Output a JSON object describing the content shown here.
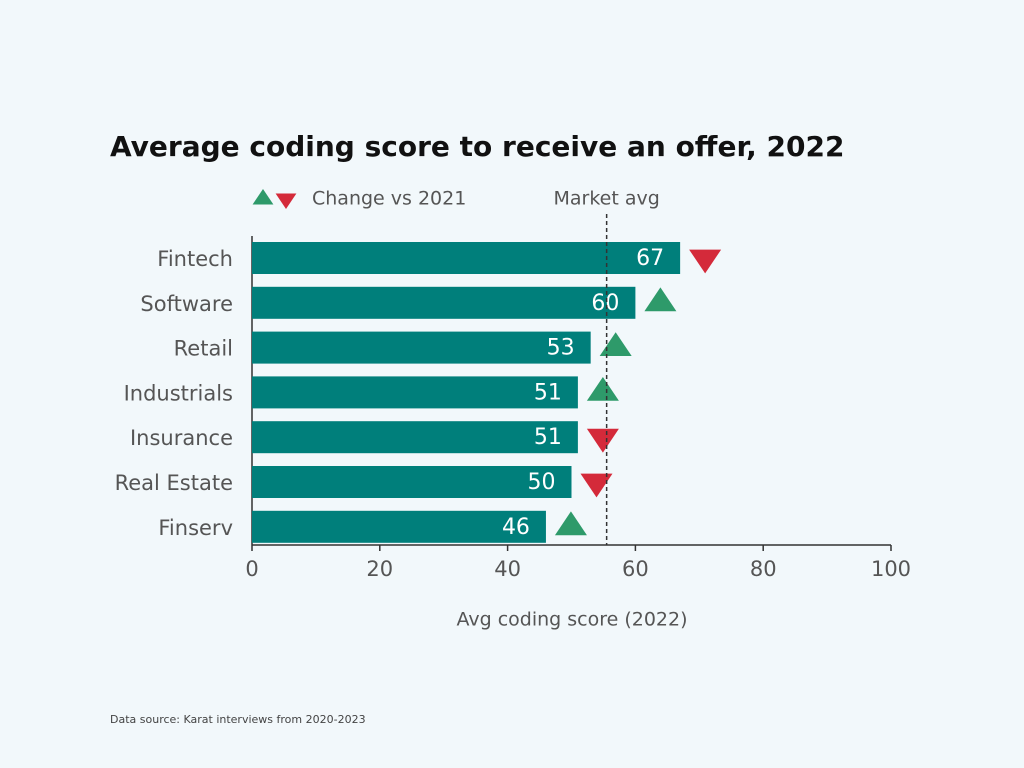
{
  "chart_data": {
    "type": "bar",
    "orientation": "horizontal",
    "title": "Average coding score to receive an offer, 2022",
    "legend_label": "Change vs 2021",
    "categories": [
      "Fintech",
      "Software",
      "Retail",
      "Industrials",
      "Insurance",
      "Real Estate",
      "Finserv"
    ],
    "values": [
      67,
      60,
      53,
      51,
      51,
      50,
      46
    ],
    "change": [
      "down",
      "up",
      "up",
      "up",
      "down",
      "down",
      "up"
    ],
    "color": "#007f7b",
    "up_color": "#2e9a6a",
    "down_color": "#d42a3a",
    "reference_line": {
      "value": 55.5,
      "label": "Market avg"
    },
    "xlim": [
      0,
      100
    ],
    "xticks": [
      0,
      20,
      40,
      60,
      80,
      100
    ],
    "x_label": "Avg coding score (2022)",
    "source": "Data source: Karat interviews from 2020-2023"
  }
}
